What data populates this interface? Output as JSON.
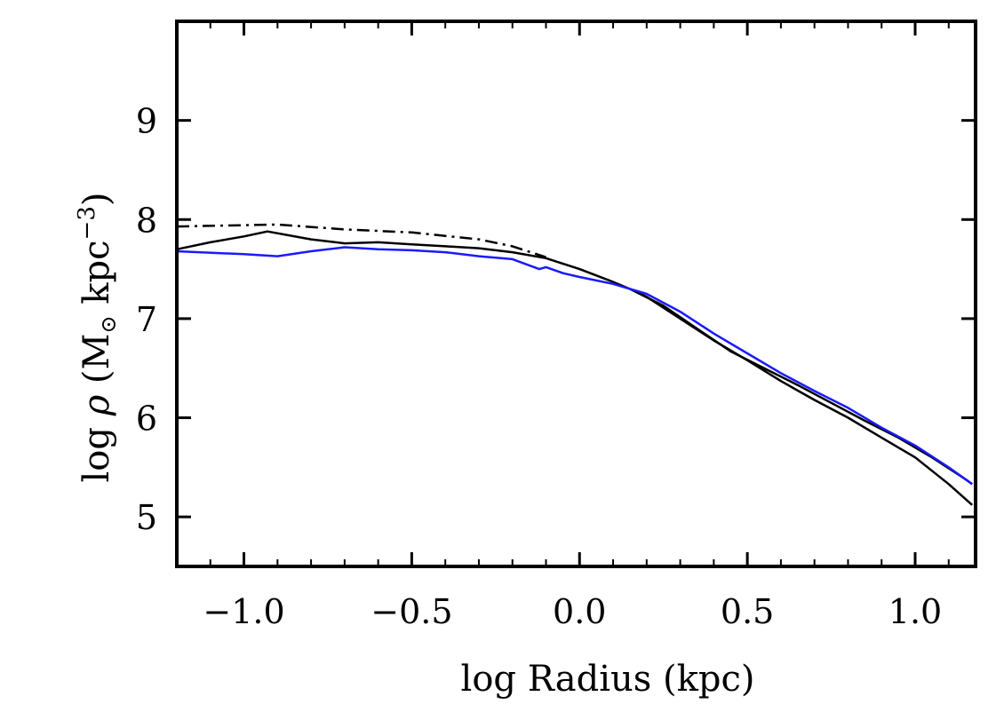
{
  "chart_data": {
    "type": "line",
    "xlabel": "log Radius (kpc)",
    "ylabel": {
      "prefix": "log ",
      "symbol": "ρ",
      "open": " (M",
      "sun": "⊙",
      "mid": " kpc",
      "exp": "−3",
      "close": ")"
    },
    "xlim": [
      -1.2,
      1.18
    ],
    "ylim": [
      4.5,
      10.0
    ],
    "x_ticks": [
      {
        "value": -1.0,
        "label": "−1.0"
      },
      {
        "value": -0.5,
        "label": "−0.5"
      },
      {
        "value": 0.0,
        "label": "0.0"
      },
      {
        "value": 0.5,
        "label": "0.5"
      },
      {
        "value": 1.0,
        "label": "1.0"
      }
    ],
    "y_ticks": [
      {
        "value": 5,
        "label": "5"
      },
      {
        "value": 6,
        "label": "6"
      },
      {
        "value": 7,
        "label": "7"
      },
      {
        "value": 8,
        "label": "8"
      },
      {
        "value": 9,
        "label": "9"
      }
    ],
    "grid": false,
    "series": [
      {
        "color": "#000000",
        "style": "dashdot",
        "x": [
          -1.2,
          -0.9,
          -0.7,
          -0.5,
          -0.3,
          -0.2,
          -0.1
        ],
        "y": [
          7.93,
          7.95,
          7.9,
          7.87,
          7.8,
          7.73,
          7.62
        ]
      },
      {
        "color": "#000000",
        "style": "solid",
        "x": [
          -1.2,
          -1.1,
          -1.0,
          -0.93,
          -0.8,
          -0.7,
          -0.6,
          -0.5,
          -0.4,
          -0.3,
          -0.2,
          -0.1,
          0.0,
          0.1,
          0.15,
          0.2,
          0.3,
          0.4,
          0.5,
          0.6,
          0.7,
          0.8,
          0.9,
          1.0,
          1.1,
          1.17
        ],
        "y": [
          7.7,
          7.77,
          7.83,
          7.88,
          7.8,
          7.76,
          7.77,
          7.75,
          7.73,
          7.71,
          7.67,
          7.61,
          7.5,
          7.37,
          7.3,
          7.22,
          7.0,
          6.78,
          6.58,
          6.37,
          6.18,
          6.0,
          5.8,
          5.6,
          5.33,
          5.12
        ]
      },
      {
        "color": "#000000",
        "style": "solid",
        "x": [
          0.15,
          0.25,
          0.35,
          0.45,
          0.55,
          0.65,
          0.75,
          0.85,
          0.95,
          1.05,
          1.15,
          1.17
        ],
        "y": [
          7.3,
          7.13,
          6.9,
          6.67,
          6.5,
          6.33,
          6.15,
          5.97,
          5.8,
          5.6,
          5.38,
          5.33
        ]
      },
      {
        "color": "#1a1aff",
        "style": "solid",
        "x": [
          -1.2,
          -1.0,
          -0.9,
          -0.8,
          -0.7,
          -0.6,
          -0.5,
          -0.4,
          -0.3,
          -0.2,
          -0.12,
          -0.1,
          -0.05,
          0.0,
          0.1,
          0.2,
          0.3,
          0.4,
          0.5,
          0.6,
          0.7,
          0.8,
          0.9,
          1.0,
          1.1,
          1.17
        ],
        "y": [
          7.68,
          7.65,
          7.63,
          7.68,
          7.72,
          7.7,
          7.69,
          7.67,
          7.63,
          7.6,
          7.5,
          7.52,
          7.46,
          7.42,
          7.35,
          7.25,
          7.07,
          6.85,
          6.65,
          6.45,
          6.27,
          6.1,
          5.9,
          5.72,
          5.5,
          5.33
        ]
      }
    ]
  }
}
